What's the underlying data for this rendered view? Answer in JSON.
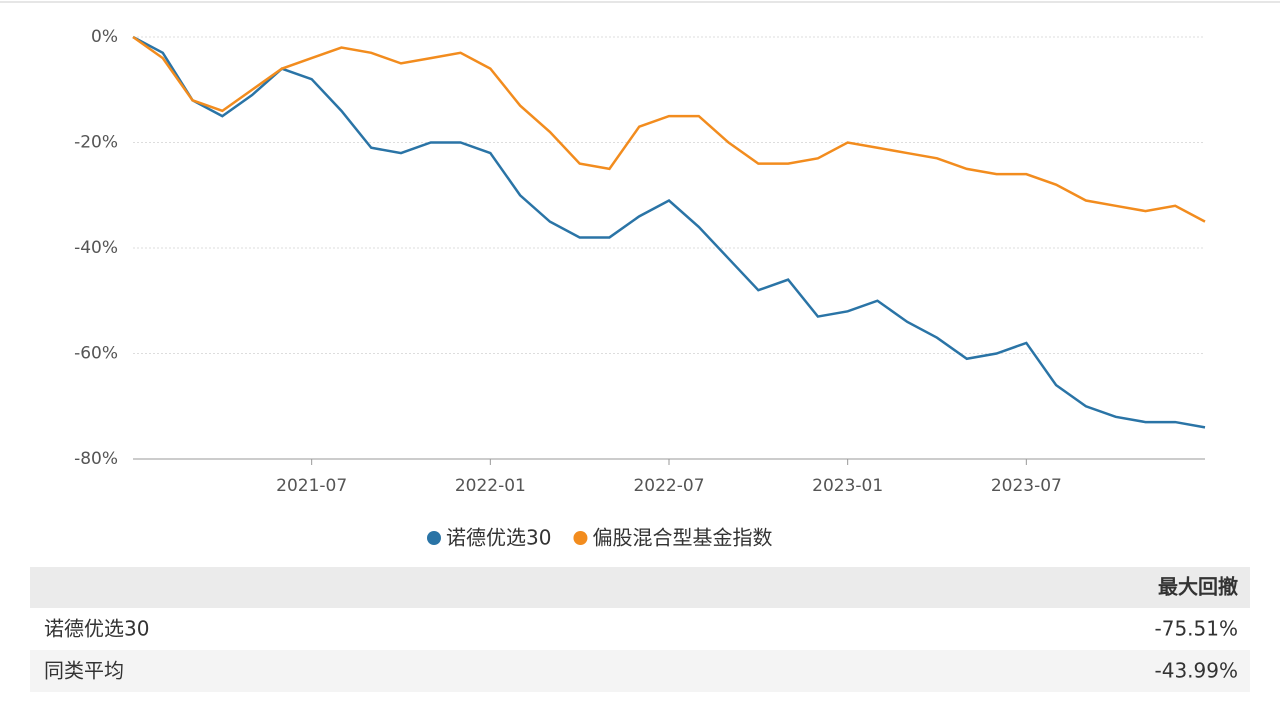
{
  "chart_data": {
    "type": "line",
    "x": [
      "2021-01",
      "2021-02",
      "2021-03",
      "2021-04",
      "2021-05",
      "2021-06",
      "2021-07",
      "2021-08",
      "2021-09",
      "2021-10",
      "2021-11",
      "2021-12",
      "2022-01",
      "2022-02",
      "2022-03",
      "2022-04",
      "2022-05",
      "2022-06",
      "2022-07",
      "2022-08",
      "2022-09",
      "2022-10",
      "2022-11",
      "2022-12",
      "2023-01",
      "2023-02",
      "2023-03",
      "2023-04",
      "2023-05",
      "2023-06",
      "2023-07",
      "2023-08",
      "2023-09",
      "2023-10",
      "2023-11",
      "2023-12",
      "2024-01"
    ],
    "series": [
      {
        "name": "诺德优选30",
        "color": "#2a74a6",
        "values": [
          0,
          -3,
          -12,
          -15,
          -11,
          -6,
          -8,
          -14,
          -21,
          -22,
          -20,
          -20,
          -22,
          -30,
          -35,
          -38,
          -38,
          -34,
          -31,
          -36,
          -42,
          -48,
          -46,
          -53,
          -52,
          -50,
          -54,
          -57,
          -61,
          -60,
          -58,
          -66,
          -70,
          -72,
          -73,
          -73,
          -74
        ]
      },
      {
        "name": "偏股混合型基金指数",
        "color": "#f28c1e",
        "values": [
          0,
          -4,
          -12,
          -14,
          -10,
          -6,
          -4,
          -2,
          -3,
          -5,
          -4,
          -3,
          -6,
          -13,
          -18,
          -24,
          -25,
          -17,
          -15,
          -15,
          -20,
          -24,
          -24,
          -23,
          -20,
          -21,
          -22,
          -23,
          -25,
          -26,
          -26,
          -28,
          -31,
          -32,
          -33,
          -32,
          -35
        ]
      }
    ],
    "xlim": [
      "2021-01",
      "2024-01"
    ],
    "xticks": [
      "2021-07",
      "2022-01",
      "2022-07",
      "2023-01",
      "2023-07"
    ],
    "ylim": [
      -80,
      0
    ],
    "yticks": [
      {
        "value": 0,
        "label": "0%"
      },
      {
        "value": -20,
        "label": "-20%"
      },
      {
        "value": -40,
        "label": "-40%"
      },
      {
        "value": -60,
        "label": "-60%"
      },
      {
        "value": -80,
        "label": "-80%"
      }
    ],
    "grid": true
  },
  "table": {
    "columns": [
      "最大回撤"
    ],
    "rows": [
      [
        "诺德优选30",
        "-75.51%"
      ],
      [
        "同类平均",
        "-43.99%"
      ]
    ]
  }
}
